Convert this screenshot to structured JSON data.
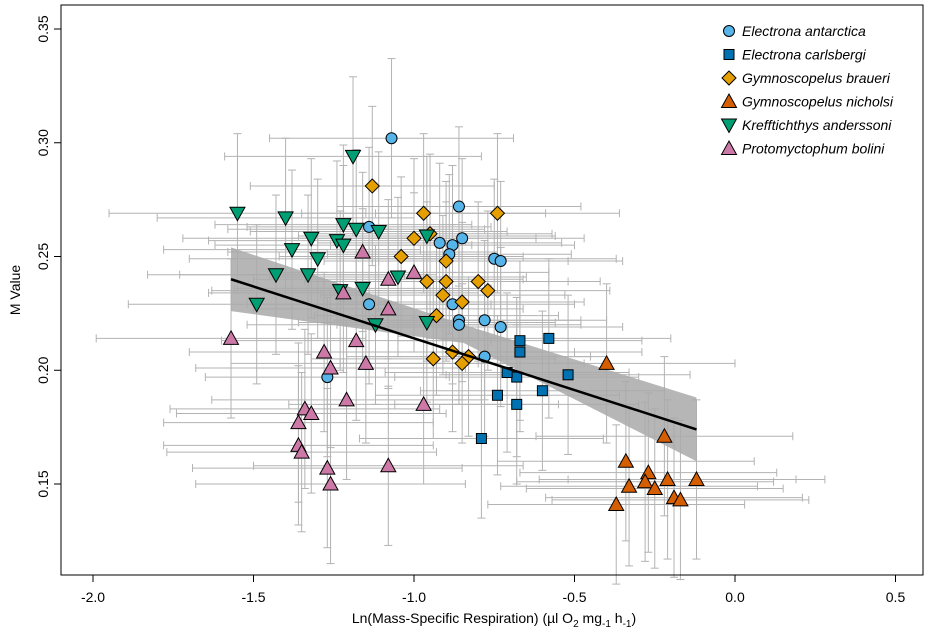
{
  "chart_data": {
    "type": "scatter",
    "title": "",
    "xlabel": {
      "prefix": "Ln(Mass-Specific Respiration) (µl O",
      "sub1": "2",
      "mid": " mg",
      "sub2": "-1",
      "mid2": " h",
      "sub3": "-1",
      "suffix": ")"
    },
    "ylabel": "M Value",
    "xlim": [
      -2.2,
      0.6
    ],
    "ylim": [
      0.105,
      0.36
    ],
    "xticks": [
      {
        "value": -2.0,
        "label": "-2.0"
      },
      {
        "value": -1.5,
        "label": "-1.5"
      },
      {
        "value": -1.0,
        "label": "-1.0"
      },
      {
        "value": -0.5,
        "label": "-0.5"
      },
      {
        "value": 0.0,
        "label": "0.0"
      },
      {
        "value": 0.5,
        "label": "0.5"
      }
    ],
    "yticks": [
      {
        "value": 0.15,
        "label": "0.15"
      },
      {
        "value": 0.2,
        "label": "0.20"
      },
      {
        "value": 0.25,
        "label": "0.25"
      },
      {
        "value": 0.3,
        "label": "0.30"
      },
      {
        "value": 0.35,
        "label": "0.35"
      }
    ],
    "grid": false,
    "legend_position": "top-right",
    "regression": {
      "x": [
        -1.57,
        -0.12
      ],
      "y": [
        0.24,
        0.174
      ],
      "ci_lower_start": 0.226,
      "ci_upper_start": 0.254,
      "ci_lower_end": 0.16,
      "ci_upper_end": 0.188,
      "ci_mid_lower": 0.212,
      "ci_mid_upper": 0.22,
      "line_color": "#000000",
      "band_color": "#a9a9a9"
    },
    "error_bar_color": "#b3b3b3",
    "series": [
      {
        "name": "Electrona antarctica",
        "marker": "circle",
        "color": "#56b4e9",
        "x_err": 0.38,
        "y_err": 0.035,
        "points": [
          [
            -1.07,
            0.302
          ],
          [
            -1.14,
            0.263
          ],
          [
            -1.14,
            0.229
          ],
          [
            -1.27,
            0.197
          ],
          [
            -0.86,
            0.272
          ],
          [
            -0.85,
            0.258
          ],
          [
            -0.88,
            0.255
          ],
          [
            -0.92,
            0.256
          ],
          [
            -0.89,
            0.251
          ],
          [
            -0.75,
            0.249
          ],
          [
            -0.73,
            0.248
          ],
          [
            -0.88,
            0.229
          ],
          [
            -0.86,
            0.222
          ],
          [
            -0.86,
            0.22
          ],
          [
            -0.78,
            0.222
          ],
          [
            -0.73,
            0.219
          ],
          [
            -0.78,
            0.206
          ]
        ]
      },
      {
        "name": "Electrona carlsbergi",
        "marker": "square",
        "color": "#0072b2",
        "x_err": 0.38,
        "y_err": 0.035,
        "points": [
          [
            -0.58,
            0.214
          ],
          [
            -0.67,
            0.213
          ],
          [
            -0.67,
            0.208
          ],
          [
            -0.68,
            0.197
          ],
          [
            -0.71,
            0.199
          ],
          [
            -0.52,
            0.198
          ],
          [
            -0.6,
            0.191
          ],
          [
            -0.74,
            0.189
          ],
          [
            -0.68,
            0.185
          ],
          [
            -0.79,
            0.17
          ]
        ]
      },
      {
        "name": "Gymnoscopelus braueri",
        "marker": "diamond",
        "color": "#e69f00",
        "x_err": 0.38,
        "y_err": 0.035,
        "points": [
          [
            -1.13,
            0.281
          ],
          [
            -0.97,
            0.269
          ],
          [
            -0.74,
            0.269
          ],
          [
            -1.0,
            0.258
          ],
          [
            -0.95,
            0.26
          ],
          [
            -1.04,
            0.25
          ],
          [
            -0.9,
            0.248
          ],
          [
            -0.96,
            0.239
          ],
          [
            -0.9,
            0.239
          ],
          [
            -0.8,
            0.239
          ],
          [
            -0.77,
            0.235
          ],
          [
            -0.91,
            0.233
          ],
          [
            -0.85,
            0.23
          ],
          [
            -0.93,
            0.224
          ],
          [
            -0.94,
            0.205
          ],
          [
            -0.83,
            0.206
          ],
          [
            -0.85,
            0.203
          ],
          [
            -0.88,
            0.208
          ]
        ]
      },
      {
        "name": "Gymnoscopelus nicholsi",
        "marker": "triangle-up",
        "color": "#d55e00",
        "x_err": 0.4,
        "y_err": 0.035,
        "points": [
          [
            -0.4,
            0.203
          ],
          [
            -0.22,
            0.171
          ],
          [
            -0.34,
            0.16
          ],
          [
            -0.27,
            0.155
          ],
          [
            -0.21,
            0.152
          ],
          [
            -0.12,
            0.152
          ],
          [
            -0.28,
            0.151
          ],
          [
            -0.33,
            0.149
          ],
          [
            -0.25,
            0.148
          ],
          [
            -0.19,
            0.144
          ],
          [
            -0.17,
            0.143
          ],
          [
            -0.37,
            0.141
          ]
        ]
      },
      {
        "name": "Krefftichthys anderssoni",
        "marker": "triangle-down",
        "color": "#009e73",
        "x_err": 0.4,
        "y_err": 0.035,
        "points": [
          [
            -1.55,
            0.269
          ],
          [
            -1.19,
            0.294
          ],
          [
            -1.4,
            0.267
          ],
          [
            -1.22,
            0.264
          ],
          [
            -1.18,
            0.262
          ],
          [
            -1.11,
            0.261
          ],
          [
            -1.32,
            0.258
          ],
          [
            -1.24,
            0.257
          ],
          [
            -1.22,
            0.255
          ],
          [
            -1.38,
            0.253
          ],
          [
            -1.3,
            0.249
          ],
          [
            -1.43,
            0.242
          ],
          [
            -1.33,
            0.242
          ],
          [
            -1.05,
            0.241
          ],
          [
            -1.16,
            0.236
          ],
          [
            -1.23,
            0.235
          ],
          [
            -1.49,
            0.229
          ],
          [
            -1.12,
            0.22
          ],
          [
            -0.96,
            0.221
          ],
          [
            -0.96,
            0.259
          ]
        ]
      },
      {
        "name": "Protomyctophum bolini",
        "marker": "triangle-up",
        "color": "#cc79a7",
        "x_err": 0.42,
        "y_err": 0.035,
        "points": [
          [
            -1.57,
            0.214
          ],
          [
            -1.16,
            0.252
          ],
          [
            -1.08,
            0.24
          ],
          [
            -1.0,
            0.243
          ],
          [
            -1.08,
            0.227
          ],
          [
            -1.22,
            0.234
          ],
          [
            -1.28,
            0.208
          ],
          [
            -1.18,
            0.213
          ],
          [
            -1.26,
            0.201
          ],
          [
            -1.15,
            0.203
          ],
          [
            -1.21,
            0.187
          ],
          [
            -0.97,
            0.185
          ],
          [
            -1.34,
            0.183
          ],
          [
            -1.32,
            0.181
          ],
          [
            -1.36,
            0.177
          ],
          [
            -1.36,
            0.167
          ],
          [
            -1.35,
            0.164
          ],
          [
            -1.27,
            0.157
          ],
          [
            -1.08,
            0.158
          ],
          [
            -1.26,
            0.15
          ]
        ]
      }
    ]
  }
}
